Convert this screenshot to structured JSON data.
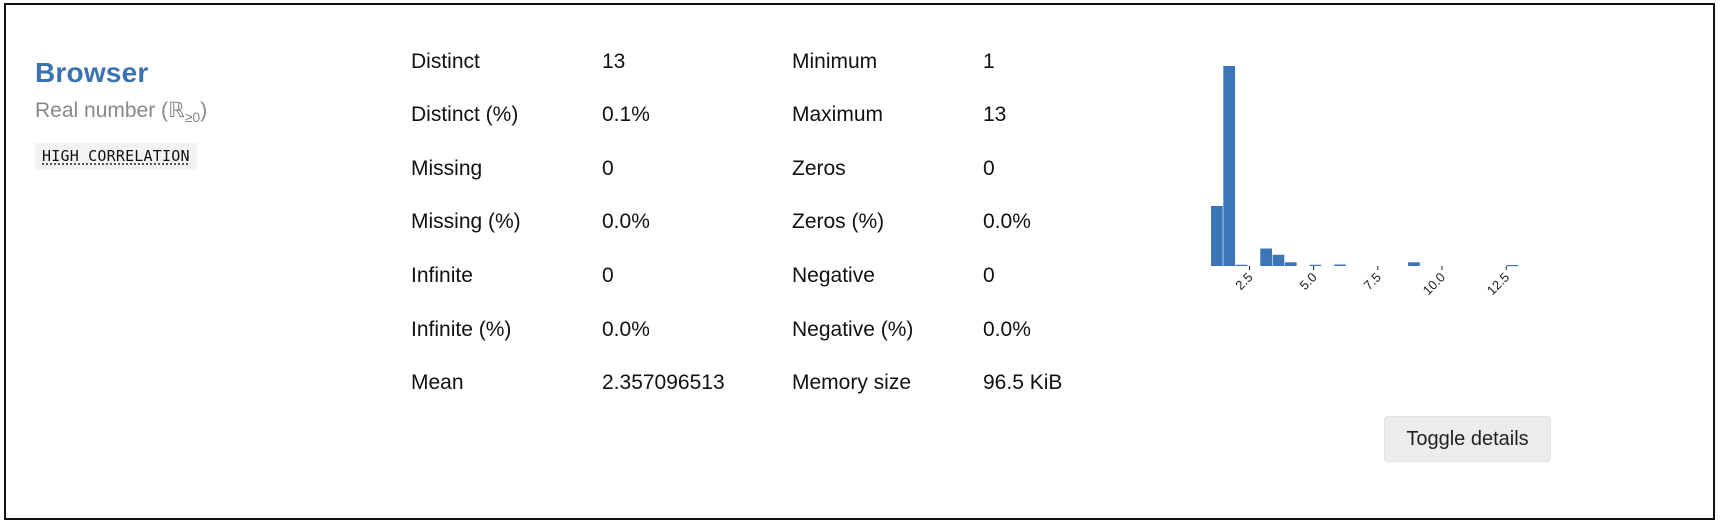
{
  "variable": {
    "name": "Browser",
    "type_label": "Real number (",
    "type_symbol": "ℝ",
    "type_sub": "≥0",
    "type_close": ")",
    "badge": "HIGH CORRELATION"
  },
  "stats_left": [
    {
      "label": "Distinct",
      "value": "13"
    },
    {
      "label": "Distinct (%)",
      "value": "0.1%"
    },
    {
      "label": "Missing",
      "value": "0"
    },
    {
      "label": "Missing (%)",
      "value": "0.0%"
    },
    {
      "label": "Infinite",
      "value": "0"
    },
    {
      "label": "Infinite (%)",
      "value": "0.0%"
    },
    {
      "label": "Mean",
      "value": "2.357096513"
    }
  ],
  "stats_right": [
    {
      "label": "Minimum",
      "value": "1"
    },
    {
      "label": "Maximum",
      "value": "13"
    },
    {
      "label": "Zeros",
      "value": "0"
    },
    {
      "label": "Zeros (%)",
      "value": "0.0%"
    },
    {
      "label": "Negative",
      "value": "0"
    },
    {
      "label": "Negative (%)",
      "value": "0.0%"
    },
    {
      "label": "Memory size",
      "value": "96.5 KiB"
    }
  ],
  "chart_data": {
    "type": "bar",
    "bin_edges": [
      1,
      1.48,
      1.96,
      2.44,
      2.92,
      3.4,
      3.88,
      4.36,
      4.84,
      5.32,
      5.8,
      6.28,
      6.76,
      7.24,
      7.72,
      8.2,
      8.68,
      9.16,
      9.64,
      10.12,
      10.6,
      11.08,
      11.56,
      12.04,
      12.52,
      13
    ],
    "values": [
      2400,
      8000,
      50,
      0,
      700,
      450,
      150,
      0,
      50,
      0,
      60,
      0,
      0,
      0,
      0,
      0,
      150,
      0,
      0,
      0,
      0,
      0,
      0,
      0,
      40
    ],
    "xticks": [
      2.5,
      5.0,
      7.5,
      10.0,
      12.5
    ],
    "xtick_labels": [
      "2.5",
      "5.0",
      "7.5",
      "10.0",
      "12.5"
    ],
    "xlim": [
      1,
      13
    ],
    "ylim": [
      0,
      8000
    ],
    "color": "#3c76b9",
    "grid": false,
    "title": "",
    "xlabel": "",
    "ylabel": ""
  },
  "toggle_button": {
    "label": "Toggle details"
  }
}
